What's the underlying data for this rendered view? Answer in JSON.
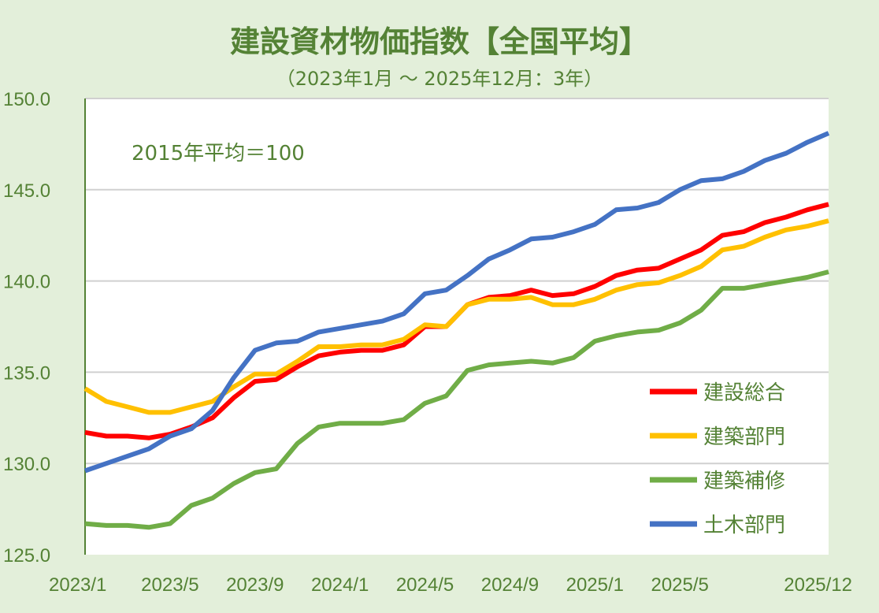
{
  "chart_data": {
    "type": "line",
    "title": "建設資材物価指数【全国平均】",
    "subtitle": "（2023年1月 ～ 2025年12月：3年）",
    "annotation": "2015年平均＝100",
    "xlabel": "",
    "ylabel": "",
    "ylim": [
      125,
      150
    ],
    "yticks": [
      "125.0",
      "130.0",
      "135.0",
      "140.0",
      "145.0",
      "150.0"
    ],
    "xtick_labels": [
      "2023/1",
      "2023/5",
      "2023/9",
      "2024/1",
      "2024/5",
      "2024/9",
      "2025/1",
      "2025/5",
      "2025/12"
    ],
    "x_start": "2023/1",
    "x_end": "2025/12",
    "grid": "horizontal",
    "legend_position": "bottom-right",
    "series": [
      {
        "name": "建設総合",
        "color": "#ff0000",
        "values": [
          131.7,
          131.5,
          131.5,
          131.4,
          131.6,
          132.0,
          132.5,
          133.6,
          134.5,
          134.6,
          135.3,
          135.9,
          136.1,
          136.2,
          136.2,
          136.5,
          137.5,
          137.5,
          138.7,
          139.1,
          139.2,
          139.5,
          139.2,
          139.3,
          139.7,
          140.3,
          140.6,
          140.7,
          141.2,
          141.7,
          142.5,
          142.7,
          143.2,
          143.5,
          143.9,
          144.2
        ]
      },
      {
        "name": "建築部門",
        "color": "#ffc000",
        "values": [
          134.1,
          133.4,
          133.1,
          132.8,
          132.8,
          133.1,
          133.4,
          134.2,
          134.9,
          134.9,
          135.6,
          136.4,
          136.4,
          136.5,
          136.5,
          136.8,
          137.6,
          137.5,
          138.7,
          139.0,
          139.0,
          139.1,
          138.7,
          138.7,
          139.0,
          139.5,
          139.8,
          139.9,
          140.3,
          140.8,
          141.7,
          141.9,
          142.4,
          142.8,
          143.0,
          143.3
        ]
      },
      {
        "name": "建築補修",
        "color": "#70ad47",
        "values": [
          126.7,
          126.6,
          126.6,
          126.5,
          126.7,
          127.7,
          128.1,
          128.9,
          129.5,
          129.7,
          131.1,
          132.0,
          132.2,
          132.2,
          132.2,
          132.4,
          133.3,
          133.7,
          135.1,
          135.4,
          135.5,
          135.6,
          135.5,
          135.8,
          136.7,
          137.0,
          137.2,
          137.3,
          137.7,
          138.4,
          139.6,
          139.6,
          139.8,
          140.0,
          140.2,
          140.5
        ]
      },
      {
        "name": "土木部門",
        "color": "#4472c4",
        "values": [
          129.6,
          130.0,
          130.4,
          130.8,
          131.5,
          131.9,
          132.9,
          134.7,
          136.2,
          136.6,
          136.7,
          137.2,
          137.4,
          137.6,
          137.8,
          138.2,
          139.3,
          139.5,
          140.3,
          141.2,
          141.7,
          142.3,
          142.4,
          142.7,
          143.1,
          143.9,
          144.0,
          144.3,
          145.0,
          145.5,
          145.6,
          146.0,
          146.6,
          147.0,
          147.6,
          148.1
        ]
      }
    ]
  }
}
